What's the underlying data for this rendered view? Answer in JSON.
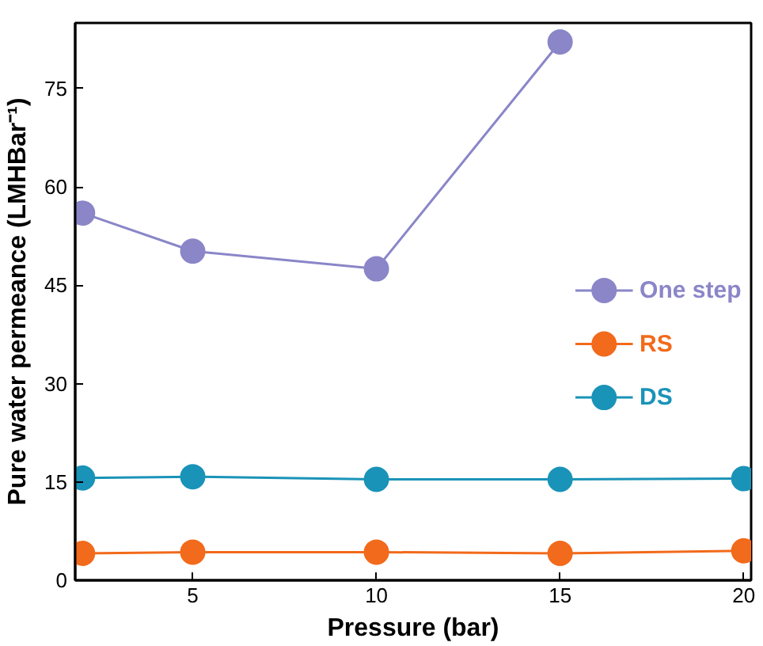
{
  "chart_data": {
    "type": "line",
    "xlabel": "Pressure (bar)",
    "ylabel": "Pure water permeance (LMHBar⁻¹)",
    "x": [
      2,
      5,
      10,
      15,
      20
    ],
    "series": [
      {
        "name": "One step",
        "color": "#8a86c8",
        "values": [
          56,
          50.2,
          47.5,
          82.1,
          null
        ]
      },
      {
        "name": "RS",
        "color": "#f26a1b",
        "values": [
          4.1,
          4.3,
          4.3,
          4.1,
          4.5
        ]
      },
      {
        "name": "DS",
        "color": "#1a93b8",
        "values": [
          15.6,
          15.8,
          15.4,
          15.4,
          15.5
        ]
      }
    ],
    "xlim": [
      1.8,
      20.2
    ],
    "ylim": [
      0,
      85
    ],
    "xticks": [
      5,
      10,
      15,
      20
    ],
    "yticks": [
      0,
      15,
      30,
      45,
      60,
      75
    ],
    "grid": false,
    "legend": "right",
    "marker": "circle",
    "line_style": "solid"
  }
}
